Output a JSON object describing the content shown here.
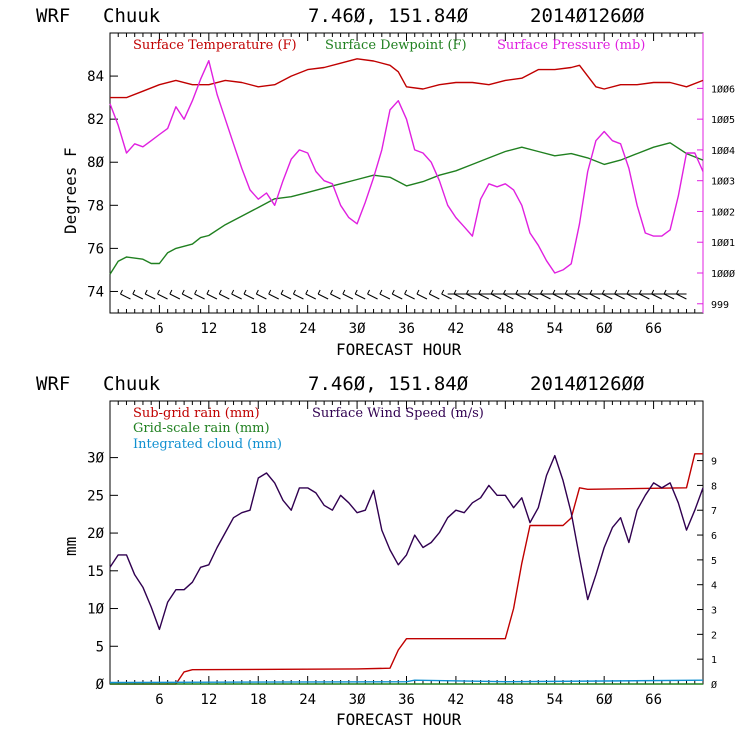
{
  "chart_data": [
    {
      "type": "line",
      "header": {
        "model": "WRF",
        "station": "Chuuk",
        "coords": "7.46Ø, 151.84Ø",
        "init": "2014Ø126ØØ"
      },
      "xlabel": "FORECAST HOUR",
      "ylabel": "Degrees F",
      "xlim": [
        0,
        72
      ],
      "ylim": [
        73,
        86
      ],
      "xticks": [
        "6",
        "12",
        "18",
        "24",
        "3Ø",
        "36",
        "42",
        "48",
        "54",
        "6Ø",
        "66"
      ],
      "yticks": [
        "74",
        "76",
        "78",
        "8Ø",
        "82",
        "84"
      ],
      "y2label": "",
      "y2lim": [
        998.7,
        1007.8
      ],
      "y2ticks": [
        "999",
        "1ØØØ",
        "1ØØ1",
        "1ØØ2",
        "1ØØ3",
        "1ØØ4",
        "1ØØ5",
        "1ØØ6"
      ],
      "series": [
        {
          "name": "Surface Temperature (F)",
          "color": "#c00000",
          "axis": "left",
          "points": [
            [
              0,
              83.0
            ],
            [
              2,
              83.0
            ],
            [
              4,
              83.3
            ],
            [
              6,
              83.6
            ],
            [
              8,
              83.8
            ],
            [
              10,
              83.6
            ],
            [
              12,
              83.6
            ],
            [
              14,
              83.8
            ],
            [
              16,
              83.7
            ],
            [
              18,
              83.5
            ],
            [
              20,
              83.6
            ],
            [
              22,
              84.0
            ],
            [
              24,
              84.3
            ],
            [
              26,
              84.4
            ],
            [
              28,
              84.6
            ],
            [
              30,
              84.8
            ],
            [
              32,
              84.7
            ],
            [
              34,
              84.5
            ],
            [
              35,
              84.2
            ],
            [
              36,
              83.5
            ],
            [
              38,
              83.4
            ],
            [
              40,
              83.6
            ],
            [
              42,
              83.7
            ],
            [
              44,
              83.7
            ],
            [
              46,
              83.6
            ],
            [
              48,
              83.8
            ],
            [
              50,
              83.9
            ],
            [
              52,
              84.3
            ],
            [
              54,
              84.3
            ],
            [
              56,
              84.4
            ],
            [
              57,
              84.5
            ],
            [
              58,
              84.0
            ],
            [
              59,
              83.5
            ],
            [
              60,
              83.4
            ],
            [
              62,
              83.6
            ],
            [
              64,
              83.6
            ],
            [
              66,
              83.7
            ],
            [
              68,
              83.7
            ],
            [
              70,
              83.5
            ],
            [
              72,
              83.8
            ]
          ]
        },
        {
          "name": "Surface Dewpoint (F)",
          "color": "#208020",
          "axis": "left",
          "points": [
            [
              0,
              74.8
            ],
            [
              1,
              75.4
            ],
            [
              2,
              75.6
            ],
            [
              4,
              75.5
            ],
            [
              5,
              75.3
            ],
            [
              6,
              75.3
            ],
            [
              7,
              75.8
            ],
            [
              8,
              76.0
            ],
            [
              10,
              76.2
            ],
            [
              11,
              76.5
            ],
            [
              12,
              76.6
            ],
            [
              14,
              77.1
            ],
            [
              16,
              77.5
            ],
            [
              18,
              77.9
            ],
            [
              20,
              78.3
            ],
            [
              22,
              78.4
            ],
            [
              24,
              78.6
            ],
            [
              26,
              78.8
            ],
            [
              28,
              79.0
            ],
            [
              30,
              79.2
            ],
            [
              32,
              79.4
            ],
            [
              34,
              79.3
            ],
            [
              36,
              78.9
            ],
            [
              38,
              79.1
            ],
            [
              40,
              79.4
            ],
            [
              42,
              79.6
            ],
            [
              44,
              79.9
            ],
            [
              46,
              80.2
            ],
            [
              48,
              80.5
            ],
            [
              50,
              80.7
            ],
            [
              52,
              80.5
            ],
            [
              54,
              80.3
            ],
            [
              56,
              80.4
            ],
            [
              58,
              80.2
            ],
            [
              60,
              79.9
            ],
            [
              62,
              80.1
            ],
            [
              64,
              80.4
            ],
            [
              66,
              80.7
            ],
            [
              68,
              80.9
            ],
            [
              70,
              80.4
            ],
            [
              72,
              80.1
            ]
          ]
        },
        {
          "name": "Surface Pressure (mb)",
          "color": "#e020e0",
          "axis": "right",
          "points": [
            [
              0,
              1005.5
            ],
            [
              1,
              1004.8
            ],
            [
              2,
              1003.9
            ],
            [
              3,
              1004.2
            ],
            [
              4,
              1004.1
            ],
            [
              5,
              1004.3
            ],
            [
              6,
              1004.5
            ],
            [
              7,
              1004.7
            ],
            [
              8,
              1005.4
            ],
            [
              9,
              1005.0
            ],
            [
              10,
              1005.6
            ],
            [
              11,
              1006.3
            ],
            [
              12,
              1006.9
            ],
            [
              13,
              1005.8
            ],
            [
              14,
              1005.0
            ],
            [
              15,
              1004.2
            ],
            [
              16,
              1003.4
            ],
            [
              17,
              1002.7
            ],
            [
              18,
              1002.4
            ],
            [
              19,
              1002.6
            ],
            [
              20,
              1002.2
            ],
            [
              21,
              1003.0
            ],
            [
              22,
              1003.7
            ],
            [
              23,
              1004.0
            ],
            [
              24,
              1003.9
            ],
            [
              25,
              1003.3
            ],
            [
              26,
              1003.0
            ],
            [
              27,
              1002.9
            ],
            [
              28,
              1002.2
            ],
            [
              29,
              1001.8
            ],
            [
              30,
              1001.6
            ],
            [
              31,
              1002.3
            ],
            [
              32,
              1003.1
            ],
            [
              33,
              1004.0
            ],
            [
              34,
              1005.3
            ],
            [
              35,
              1005.6
            ],
            [
              36,
              1005.0
            ],
            [
              37,
              1004.0
            ],
            [
              38,
              1003.9
            ],
            [
              39,
              1003.6
            ],
            [
              40,
              1003.0
            ],
            [
              41,
              1002.2
            ],
            [
              42,
              1001.8
            ],
            [
              43,
              1001.5
            ],
            [
              44,
              1001.2
            ],
            [
              45,
              1002.4
            ],
            [
              46,
              1002.9
            ],
            [
              47,
              1002.8
            ],
            [
              48,
              1002.9
            ],
            [
              49,
              1002.7
            ],
            [
              50,
              1002.2
            ],
            [
              51,
              1001.3
            ],
            [
              52,
              1000.9
            ],
            [
              53,
              1000.4
            ],
            [
              54,
              1000.0
            ],
            [
              55,
              1000.1
            ],
            [
              56,
              1000.3
            ],
            [
              57,
              1001.6
            ],
            [
              58,
              1003.3
            ],
            [
              59,
              1004.3
            ],
            [
              60,
              1004.6
            ],
            [
              61,
              1004.3
            ],
            [
              62,
              1004.2
            ],
            [
              63,
              1003.4
            ],
            [
              64,
              1002.2
            ],
            [
              65,
              1001.3
            ],
            [
              66,
              1001.2
            ],
            [
              67,
              1001.2
            ],
            [
              68,
              1001.4
            ],
            [
              69,
              1002.5
            ],
            [
              70,
              1003.9
            ],
            [
              71,
              1003.9
            ],
            [
              72,
              1003.3
            ]
          ]
        }
      ]
    },
    {
      "type": "line",
      "header": {
        "model": "WRF",
        "station": "Chuuk",
        "coords": "7.46Ø, 151.84Ø",
        "init": "2014Ø126ØØ"
      },
      "xlabel": "FORECAST HOUR",
      "ylabel": "mm",
      "xlim": [
        0,
        72
      ],
      "ylim": [
        0,
        37.5
      ],
      "xticks": [
        "6",
        "12",
        "18",
        "24",
        "3Ø",
        "36",
        "42",
        "48",
        "54",
        "6Ø",
        "66"
      ],
      "yticks": [
        "Ø",
        "5",
        "1Ø",
        "15",
        "2Ø",
        "25",
        "3Ø"
      ],
      "y2lim": [
        0,
        11.4
      ],
      "y2ticks": [
        "Ø",
        "1",
        "2",
        "3",
        "4",
        "5",
        "6",
        "7",
        "8",
        "9"
      ],
      "series": [
        {
          "name": "Sub-grid rain (mm)",
          "color": "#c00000",
          "axis": "left",
          "points": [
            [
              0,
              0
            ],
            [
              8,
              0
            ],
            [
              9,
              1.6
            ],
            [
              10,
              1.9
            ],
            [
              30,
              2.0
            ],
            [
              34,
              2.1
            ],
            [
              35,
              4.5
            ],
            [
              36,
              6.0
            ],
            [
              48,
              6.0
            ],
            [
              49,
              10
            ],
            [
              50,
              16
            ],
            [
              51,
              21
            ],
            [
              55,
              21
            ],
            [
              56,
              22
            ],
            [
              57,
              26
            ],
            [
              58,
              25.8
            ],
            [
              70,
              26
            ],
            [
              71,
              30.5
            ],
            [
              72,
              30.5
            ]
          ]
        },
        {
          "name": "Grid-scale rain (mm)",
          "color": "#208020",
          "axis": "left",
          "points": [
            [
              0,
              0
            ],
            [
              72,
              0
            ]
          ]
        },
        {
          "name": "Integrated cloud (mm)",
          "color": "#1090d0",
          "axis": "left",
          "points": [
            [
              0,
              0.2
            ],
            [
              36,
              0.3
            ],
            [
              37,
              0.5
            ],
            [
              48,
              0.3
            ],
            [
              60,
              0.4
            ],
            [
              72,
              0.5
            ]
          ]
        },
        {
          "name": "Surface Wind Speed (m/s)",
          "color": "#300050",
          "axis": "right",
          "points": [
            [
              0,
              4.7
            ],
            [
              1,
              5.2
            ],
            [
              2,
              5.2
            ],
            [
              3,
              4.4
            ],
            [
              4,
              3.9
            ],
            [
              5,
              3.1
            ],
            [
              6,
              2.2
            ],
            [
              7,
              3.3
            ],
            [
              8,
              3.8
            ],
            [
              9,
              3.8
            ],
            [
              10,
              4.1
            ],
            [
              11,
              4.7
            ],
            [
              12,
              4.8
            ],
            [
              13,
              5.5
            ],
            [
              14,
              6.1
            ],
            [
              15,
              6.7
            ],
            [
              16,
              6.9
            ],
            [
              17,
              7.0
            ],
            [
              18,
              8.3
            ],
            [
              19,
              8.5
            ],
            [
              20,
              8.1
            ],
            [
              21,
              7.4
            ],
            [
              22,
              7.0
            ],
            [
              23,
              7.9
            ],
            [
              24,
              7.9
            ],
            [
              25,
              7.7
            ],
            [
              26,
              7.2
            ],
            [
              27,
              7.0
            ],
            [
              28,
              7.6
            ],
            [
              29,
              7.3
            ],
            [
              30,
              6.9
            ],
            [
              31,
              7.0
            ],
            [
              32,
              7.8
            ],
            [
              33,
              6.2
            ],
            [
              34,
              5.4
            ],
            [
              35,
              4.8
            ],
            [
              36,
              5.2
            ],
            [
              37,
              6.0
            ],
            [
              38,
              5.5
            ],
            [
              39,
              5.7
            ],
            [
              40,
              6.1
            ],
            [
              41,
              6.7
            ],
            [
              42,
              7.0
            ],
            [
              43,
              6.9
            ],
            [
              44,
              7.3
            ],
            [
              45,
              7.5
            ],
            [
              46,
              8.0
            ],
            [
              47,
              7.6
            ],
            [
              48,
              7.6
            ],
            [
              49,
              7.1
            ],
            [
              50,
              7.5
            ],
            [
              51,
              6.5
            ],
            [
              52,
              7.1
            ],
            [
              53,
              8.4
            ],
            [
              54,
              9.2
            ],
            [
              55,
              8.2
            ],
            [
              56,
              6.9
            ],
            [
              57,
              5.1
            ],
            [
              58,
              3.4
            ],
            [
              59,
              4.4
            ],
            [
              60,
              5.5
            ],
            [
              61,
              6.3
            ],
            [
              62,
              6.7
            ],
            [
              63,
              5.7
            ],
            [
              64,
              7.0
            ],
            [
              65,
              7.6
            ],
            [
              66,
              8.1
            ],
            [
              67,
              7.9
            ],
            [
              68,
              8.1
            ],
            [
              69,
              7.3
            ],
            [
              70,
              6.2
            ],
            [
              71,
              7.0
            ],
            [
              72,
              7.9
            ]
          ]
        }
      ]
    }
  ]
}
